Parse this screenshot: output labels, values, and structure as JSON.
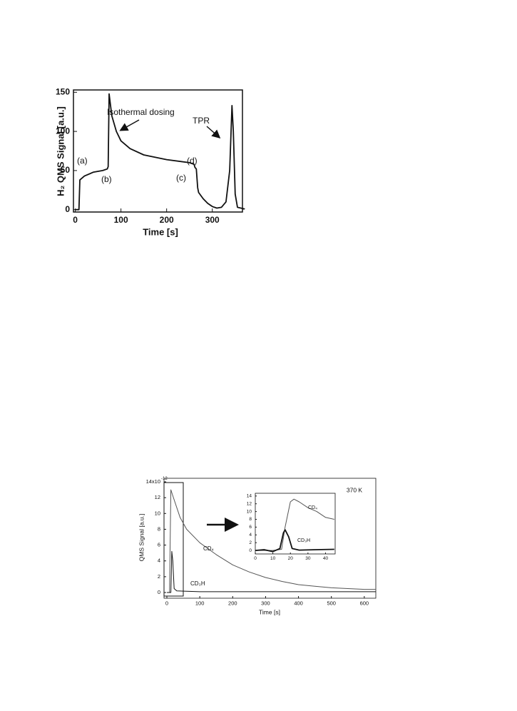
{
  "chart_data": [
    {
      "type": "line",
      "xlabel": "Time [s]",
      "ylabel": "H₂ QMS Signal [a.u.]",
      "x": [
        0,
        8,
        10,
        20,
        40,
        60,
        70,
        72,
        74,
        80,
        90,
        100,
        120,
        150,
        200,
        250,
        260,
        262,
        265,
        268,
        270,
        280,
        290,
        300,
        310,
        320,
        330,
        338,
        343,
        346,
        350,
        355,
        370,
        366
      ],
      "values": [
        0,
        0,
        38,
        43,
        48,
        50,
        52,
        55,
        148,
        120,
        100,
        88,
        78,
        70,
        64,
        60,
        58,
        54,
        52,
        28,
        22,
        14,
        8,
        4,
        2,
        3,
        10,
        50,
        133,
        100,
        20,
        3,
        1,
        1
      ],
      "color": "#111111",
      "xlim": [
        -4,
        366
      ],
      "ylim": [
        -3,
        153
      ],
      "xticks": [
        0,
        100,
        200,
        300
      ],
      "yticks": [
        0,
        50,
        100,
        150
      ],
      "annotations": [
        "Isothermal dosing",
        "TPR",
        "(a)",
        "(b)",
        "(c)",
        "(d)"
      ]
    },
    {
      "type": "line",
      "xlabel": "Time [s]",
      "ylabel": "QMS Signal [a.u.]",
      "y_exponent": "-12",
      "xlim": [
        -8.7,
        635
      ],
      "ylim": [
        -0.72,
        14.45
      ],
      "xticks": [
        0,
        100,
        200,
        300,
        400,
        500,
        600
      ],
      "yticks": [
        0,
        2,
        4,
        6,
        8,
        10,
        12,
        {
          "value": 14,
          "label": "14x10"
        }
      ],
      "annotations": [
        "370 K"
      ],
      "series": [
        {
          "name": "CD₄",
          "color": "#555555",
          "x": [
            0,
            8,
            12,
            20,
            40,
            60,
            100,
            150,
            200,
            250,
            300,
            350,
            400,
            450,
            500,
            550,
            600,
            635
          ],
          "values": [
            0,
            0,
            13,
            12,
            9.5,
            8,
            6.3,
            4.8,
            3.5,
            2.6,
            1.9,
            1.4,
            1,
            0.8,
            0.6,
            0.5,
            0.4,
            0.4
          ]
        },
        {
          "name": "CD₃H",
          "color": "#111111",
          "x": [
            0,
            12,
            15,
            18,
            22,
            30,
            100,
            200,
            300,
            400,
            500,
            600,
            635
          ],
          "values": [
            0,
            0,
            5.2,
            4,
            0.5,
            0.2,
            0.1,
            0.1,
            0.1,
            0.1,
            0.1,
            0.1,
            0.1
          ]
        }
      ]
    },
    {
      "type": "line",
      "xlim": [
        0,
        45.5
      ],
      "ylim": [
        -0.9,
        14.7
      ],
      "xticks": [
        0,
        10,
        20,
        30,
        40
      ],
      "yticks": [
        0,
        2,
        4,
        6,
        8,
        10,
        12,
        14
      ],
      "series": [
        {
          "name": "CD₄",
          "color": "#555555",
          "x": [
            0,
            10,
            15,
            17,
            20,
            22,
            25,
            30,
            35,
            40,
            45
          ],
          "values": [
            0,
            0,
            0.3,
            6,
            12.5,
            13.2,
            12.5,
            11,
            10,
            8.5,
            8
          ]
        },
        {
          "name": "CD₃H",
          "color": "#111111",
          "x": [
            0,
            5,
            10,
            14,
            16,
            17,
            19,
            21,
            25,
            35,
            45
          ],
          "values": [
            0,
            0.2,
            -0.3,
            0.5,
            4.5,
            5.3,
            3.5,
            0.5,
            0.1,
            0.2,
            0.3
          ]
        }
      ]
    }
  ]
}
